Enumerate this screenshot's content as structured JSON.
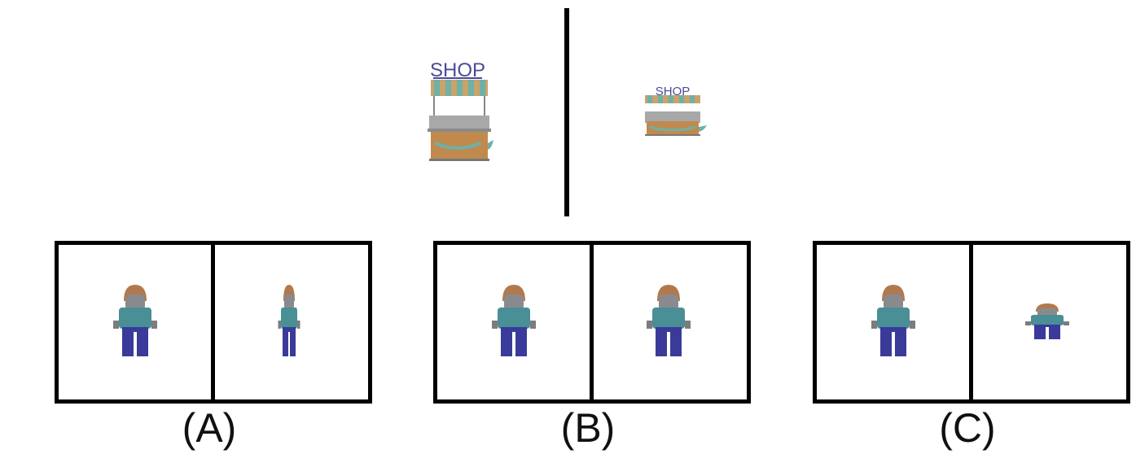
{
  "top": {
    "left_shop": {
      "sign": "SHOP"
    },
    "right_shop": {
      "sign": "SHOP"
    }
  },
  "options": [
    {
      "label": "(A)"
    },
    {
      "label": "(B)"
    },
    {
      "label": "(C)"
    }
  ],
  "colors": {
    "hair": "#b07a4e",
    "face": "#8a8a8e",
    "shirt": "#4a8e96",
    "pants": "#3a3a9a",
    "shop_sign": "#4b4a98",
    "awning_teal": "#6fb0a8",
    "awning_tan": "#c9a36a",
    "cart_wood": "#c08a4e",
    "cart_metal": "#9a9a9a"
  }
}
